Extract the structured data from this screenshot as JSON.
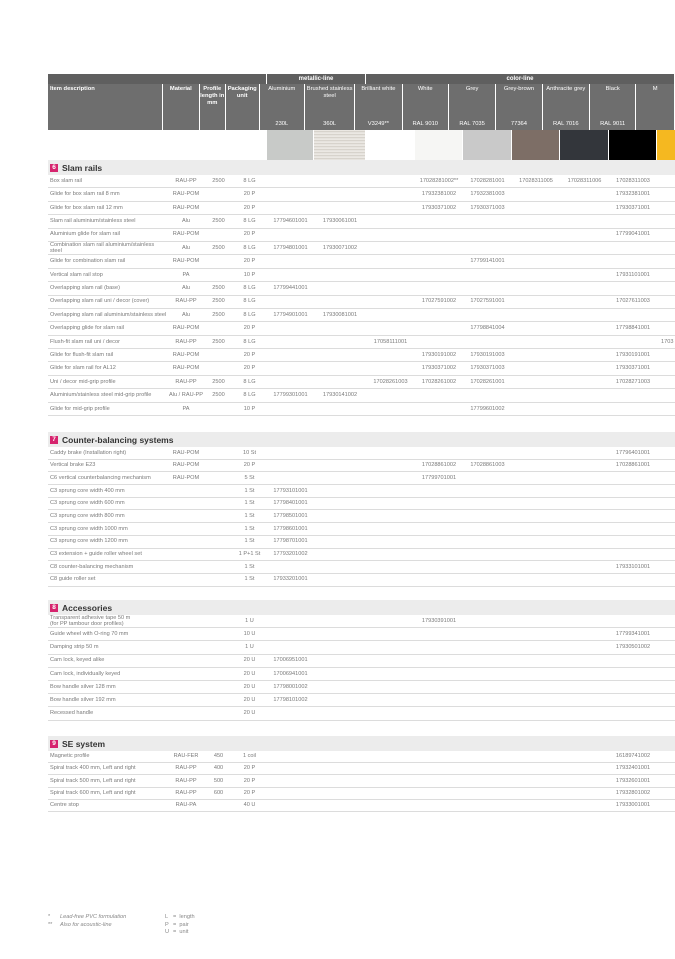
{
  "groups": [
    {
      "label": ""
    },
    {
      "label": "metallic-line"
    },
    {
      "label": "color-line"
    }
  ],
  "columns": {
    "description": "Item description",
    "material": "Material",
    "profile_length": "Profile length in mm",
    "packaging": "Packaging unit",
    "finishes": [
      {
        "name": "Aluminium",
        "code": "230L",
        "color": "#c8cac8"
      },
      {
        "name": "Brushed stainless steel",
        "code": "360L",
        "color": "#e0dcd6"
      },
      {
        "name": "Brilliant white",
        "code": "V3249**",
        "color": "#ffffff"
      },
      {
        "name": "White",
        "code": "RAL 9010",
        "color": "#f6f6f4"
      },
      {
        "name": "Grey",
        "code": "RAL 7035",
        "color": "#c9c9c9"
      },
      {
        "name": "Grey-brown",
        "code": "77364",
        "color": "#7d6e66"
      },
      {
        "name": "Anthracite grey",
        "code": "RAL 7016",
        "color": "#33363b"
      },
      {
        "name": "Black",
        "code": "RAL 9011",
        "color": "#000000"
      },
      {
        "name": "M",
        "code": "",
        "color": "#f5b820"
      }
    ]
  },
  "accent_color": "#d6246e",
  "sections": [
    {
      "number": "6",
      "title": "Slam rails",
      "rows": [
        [
          "Box slam rail",
          "RAU-PP",
          "2500",
          "8 LG",
          "",
          "",
          "",
          "17028281002**",
          "17028281001",
          "17028311005",
          "17028311006",
          "17028311003",
          ""
        ],
        [
          "Glide for box slam rail 8 mm",
          "RAU-POM",
          "",
          "20 P",
          "",
          "",
          "",
          "17932381002",
          "17932381003",
          "",
          "",
          "17932381001",
          ""
        ],
        [
          "Glide for box slam rail 12 mm",
          "RAU-POM",
          "",
          "20 P",
          "",
          "",
          "",
          "17930371002",
          "17930371003",
          "",
          "",
          "17930371001",
          ""
        ],
        [
          "Slam rail aluminium/stainless steel",
          "Alu",
          "2500",
          "8 LG",
          "17794601001",
          "17930061001",
          "",
          "",
          "",
          "",
          "",
          "",
          ""
        ],
        [
          "Aluminium glide for slam rail",
          "RAU-POM",
          "",
          "20 P",
          "",
          "",
          "",
          "",
          "",
          "",
          "",
          "17799041001",
          ""
        ],
        [
          "Combination slam rail aluminium/stainless steel",
          "Alu",
          "2500",
          "8 LG",
          "17794801001",
          "17930071002",
          "",
          "",
          "",
          "",
          "",
          "",
          ""
        ],
        [
          "Glide for combination slam rail",
          "RAU-POM",
          "",
          "20 P",
          "",
          "",
          "",
          "",
          "17799141001",
          "",
          "",
          "",
          ""
        ],
        [
          "Vertical slam rail stop",
          "PA",
          "",
          "10 P",
          "",
          "",
          "",
          "",
          "",
          "",
          "",
          "17931101001",
          ""
        ],
        [
          "Overlapping slam rail (base)",
          "Alu",
          "2500",
          "8 LG",
          "17799441001",
          "",
          "",
          "",
          "",
          "",
          "",
          "",
          ""
        ],
        [
          "Overlapping slam rail uni / decor (cover)",
          "RAU-PP",
          "2500",
          "8 LG",
          "",
          "",
          "",
          "17027591002",
          "17027591001",
          "",
          "",
          "17027611003",
          ""
        ],
        [
          "Overlapping slam rail aluminium/stainless steel",
          "Alu",
          "2500",
          "8 LG",
          "17794901001",
          "17930081001",
          "",
          "",
          "",
          "",
          "",
          "",
          ""
        ],
        [
          "Overlapping glide for slam rail",
          "RAU-POM",
          "",
          "20 P",
          "",
          "",
          "",
          "",
          "17798841004",
          "",
          "",
          "17798841001",
          ""
        ],
        [
          "Flush-fit slam rail uni / decor",
          "RAU-PP",
          "2500",
          "8 LG",
          "",
          "",
          "17058111001",
          "",
          "",
          "",
          "",
          "",
          "1703"
        ],
        [
          "Glide for flush-fit slam rail",
          "RAU-POM",
          "",
          "20 P",
          "",
          "",
          "",
          "17930191002",
          "17930191003",
          "",
          "",
          "17930191001",
          ""
        ],
        [
          "Glide for slam rail for AL12",
          "RAU-POM",
          "",
          "20 P",
          "",
          "",
          "",
          "17930371002",
          "17930371003",
          "",
          "",
          "17930371001",
          ""
        ],
        [
          "Uni / decor mid-grip profile",
          "RAU-PP",
          "2500",
          "8 LG",
          "",
          "",
          "17028261003",
          "17028261002",
          "17028261001",
          "",
          "",
          "17028271003",
          ""
        ],
        [
          "Aluminium/stainless steel mid-grip profile",
          "Alu / RAU-PP",
          "2500",
          "8 LG",
          "17799301001",
          "17930141002",
          "",
          "",
          "",
          "",
          "",
          "",
          ""
        ],
        [
          "Glide for mid-grip profile",
          "PA",
          "",
          "10 P",
          "",
          "",
          "",
          "",
          "17799601002",
          "",
          "",
          "",
          ""
        ]
      ]
    },
    {
      "number": "7",
      "title": "Counter-balancing systems",
      "rows": [
        [
          "Caddy brake (Installation right)",
          "RAU-POM",
          "",
          "10 St",
          "",
          "",
          "",
          "",
          "",
          "",
          "",
          "17796401001",
          ""
        ],
        [
          "Vertical brake E23",
          "RAU-POM",
          "",
          "20 P",
          "",
          "",
          "",
          "17028861002",
          "17028861003",
          "",
          "",
          "17028861001",
          ""
        ],
        [
          "C6 vertical counterbalancing mechanism",
          "RAU-POM",
          "",
          "5 St",
          "",
          "",
          "",
          "17799701001",
          "",
          "",
          "",
          "",
          ""
        ],
        [
          "C3 sprung core width 400 mm",
          "",
          "",
          "1 St",
          "17793101001",
          "",
          "",
          "",
          "",
          "",
          "",
          "",
          ""
        ],
        [
          "C3 sprung core width 600 mm",
          "",
          "",
          "1 St",
          "17798401001",
          "",
          "",
          "",
          "",
          "",
          "",
          "",
          ""
        ],
        [
          "C3 sprung core width 800 mm",
          "",
          "",
          "1 St",
          "17798501001",
          "",
          "",
          "",
          "",
          "",
          "",
          "",
          ""
        ],
        [
          "C3 sprung core width 1000 mm",
          "",
          "",
          "1 St",
          "17798601001",
          "",
          "",
          "",
          "",
          "",
          "",
          "",
          ""
        ],
        [
          "C3 sprung core width 1200 mm",
          "",
          "",
          "1 St",
          "17798701001",
          "",
          "",
          "",
          "",
          "",
          "",
          "",
          ""
        ],
        [
          "C3 extension + guide roller wheel set",
          "",
          "",
          "1 P+1 St",
          "17793201002",
          "",
          "",
          "",
          "",
          "",
          "",
          "",
          ""
        ],
        [
          "C8 counter-balancing mechanism",
          "",
          "",
          "1 St",
          "",
          "",
          "",
          "",
          "",
          "",
          "",
          "17933101001",
          ""
        ],
        [
          "C8 guide roller set",
          "",
          "",
          "1 St",
          "17933201001",
          "",
          "",
          "",
          "",
          "",
          "",
          "",
          ""
        ]
      ]
    },
    {
      "number": "8",
      "title": "Accessories",
      "rows": [
        [
          "Transparent adhesive tape 50 m\n(for PP tambour door profiles)",
          "",
          "",
          "1 U",
          "",
          "",
          "",
          "17930391001",
          "",
          "",
          "",
          "",
          ""
        ],
        [
          "Guide wheel with O-ring 70 mm",
          "",
          "",
          "10 U",
          "",
          "",
          "",
          "",
          "",
          "",
          "",
          "17799341001",
          ""
        ],
        [
          "Damping strip 50 m",
          "",
          "",
          "1 U",
          "",
          "",
          "",
          "",
          "",
          "",
          "",
          "17930501002",
          ""
        ],
        [
          "Cam lock, keyed alike",
          "",
          "",
          "20 U",
          "17006951001",
          "",
          "",
          "",
          "",
          "",
          "",
          "",
          ""
        ],
        [
          "Cam lock, individually keyed",
          "",
          "",
          "20 U",
          "17006941001",
          "",
          "",
          "",
          "",
          "",
          "",
          "",
          ""
        ],
        [
          "Bow handle silver 128 mm",
          "",
          "",
          "20 U",
          "17798001002",
          "",
          "",
          "",
          "",
          "",
          "",
          "",
          ""
        ],
        [
          "Bow handle silver 192 mm",
          "",
          "",
          "20 U",
          "17798101002",
          "",
          "",
          "",
          "",
          "",
          "",
          "",
          ""
        ],
        [
          "Recessed handle",
          "",
          "",
          "20 U",
          "",
          "",
          "",
          "",
          "",
          "",
          "",
          "",
          ""
        ]
      ]
    },
    {
      "number": "9",
      "title": "SE system",
      "rows": [
        [
          "Magnetic profile",
          "RAU-FER",
          "450",
          "1 coil",
          "",
          "",
          "",
          "",
          "",
          "",
          "",
          "16189741002",
          ""
        ],
        [
          "Spiral track 400 mm, Left and right",
          "RAU-PP",
          "400",
          "20 P",
          "",
          "",
          "",
          "",
          "",
          "",
          "",
          "17932401001",
          ""
        ],
        [
          "Spiral track 500 mm, Left and right",
          "RAU-PP",
          "500",
          "20 P",
          "",
          "",
          "",
          "",
          "",
          "",
          "",
          "17932601001",
          ""
        ],
        [
          "Spiral track 600 mm, Left and right",
          "RAU-PP",
          "600",
          "20 P",
          "",
          "",
          "",
          "",
          "",
          "",
          "",
          "17932801002",
          ""
        ],
        [
          "Centre stop",
          "RAU-PA",
          "",
          "40 U",
          "",
          "",
          "",
          "",
          "",
          "",
          "",
          "17933001001",
          ""
        ]
      ]
    }
  ],
  "footnotes": [
    {
      "mark": "*",
      "text": "Lead-free PVC formulation"
    },
    {
      "mark": "**",
      "text": "Also for acoustic-line"
    }
  ],
  "legend": [
    {
      "abbr": "L",
      "meaning": "length"
    },
    {
      "abbr": "P",
      "meaning": "pair"
    },
    {
      "abbr": "U",
      "meaning": "unit"
    }
  ]
}
